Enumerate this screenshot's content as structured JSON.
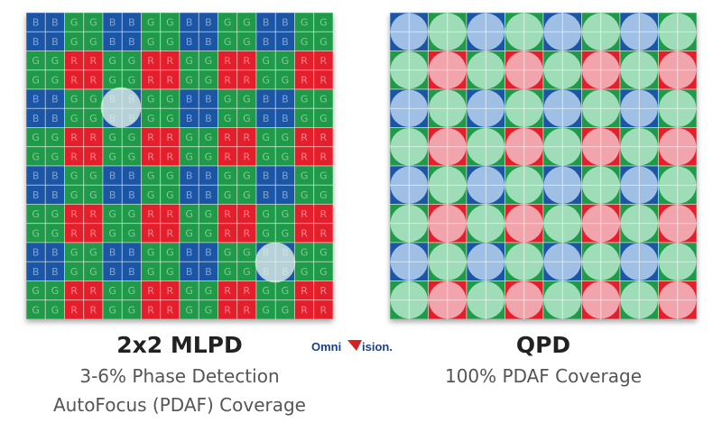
{
  "left": {
    "title": "2x2 MLPD",
    "subtitle_line1": "3-6% Phase Detection",
    "subtitle_line2": "AutoFocus (PDAF) Coverage",
    "letters": {
      "green": "G",
      "red": "R",
      "blue": "B"
    }
  },
  "right": {
    "title": "QPD",
    "subtitle": "100% PDAF Coverage"
  },
  "logo": {
    "text_left": "Omni",
    "text_right": "ision."
  },
  "colors": {
    "green": "#1f9a48",
    "red": "#e41e2b",
    "blue": "#1b55a6",
    "logo_red": "#d71f26",
    "logo_blue": "#1a3f8c"
  }
}
